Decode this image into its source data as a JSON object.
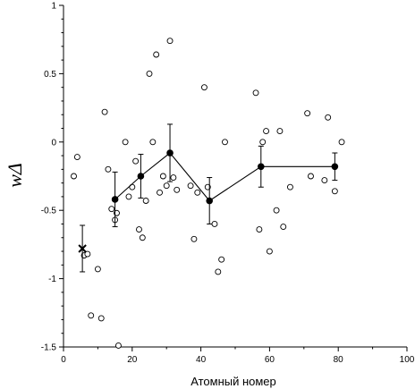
{
  "chart_data": {
    "type": "scatter",
    "xlabel": "Атомный номер",
    "ylabel": "wΔ",
    "xlim": [
      0,
      100
    ],
    "ylim": [
      -1.5,
      1
    ],
    "xticks": [
      0,
      20,
      40,
      60,
      80,
      100
    ],
    "xtick_labels": [
      "0",
      "20",
      "40",
      "60",
      "80",
      "100"
    ],
    "yticks": [
      -1.5,
      -1,
      -0.5,
      0,
      0.5,
      1
    ],
    "ytick_labels": [
      "-1.5",
      "-1",
      "-0.5",
      "0",
      "0.5",
      "1"
    ],
    "grid": false,
    "legend": "none",
    "series": [
      {
        "marker": "open-circle",
        "x": [
          3,
          4,
          6,
          7,
          8,
          10,
          11,
          12,
          13,
          14,
          15,
          15.5,
          16,
          18,
          19,
          20,
          21,
          22,
          23,
          24,
          25,
          26,
          27,
          28,
          29,
          30,
          31,
          32,
          33,
          37,
          38,
          39,
          41,
          42,
          44,
          45,
          46,
          47,
          56,
          57,
          58,
          59,
          60,
          62,
          63,
          64,
          66,
          71,
          72,
          76,
          77,
          79,
          81
        ],
        "y": [
          -0.25,
          -0.11,
          -0.83,
          -0.82,
          -1.27,
          -0.93,
          -1.29,
          0.22,
          -0.2,
          -0.49,
          -0.57,
          -0.52,
          -1.49,
          0.0,
          -0.4,
          -0.33,
          -0.14,
          -0.64,
          -0.7,
          -0.43,
          0.5,
          0.0,
          0.64,
          -0.37,
          -0.25,
          -0.32,
          0.74,
          -0.26,
          -0.35,
          -0.32,
          -0.71,
          -0.37,
          0.4,
          -0.33,
          -0.6,
          -0.95,
          -0.86,
          0.0,
          0.36,
          -0.64,
          0.0,
          0.08,
          -0.8,
          -0.5,
          0.08,
          -0.62,
          -0.33,
          0.21,
          -0.25,
          -0.28,
          0.18,
          -0.36,
          0.0
        ]
      },
      {
        "marker": "filled-circle-line",
        "x": [
          15,
          22.5,
          31,
          42.5,
          57.5,
          79
        ],
        "y": [
          -0.42,
          -0.25,
          -0.08,
          -0.43,
          -0.18,
          -0.18
        ],
        "err": [
          0.2,
          0.16,
          0.21,
          0.17,
          0.15,
          0.1
        ]
      },
      {
        "marker": "cross",
        "x": [
          5.5
        ],
        "y": [
          -0.78
        ],
        "err": [
          0.17
        ]
      }
    ]
  }
}
